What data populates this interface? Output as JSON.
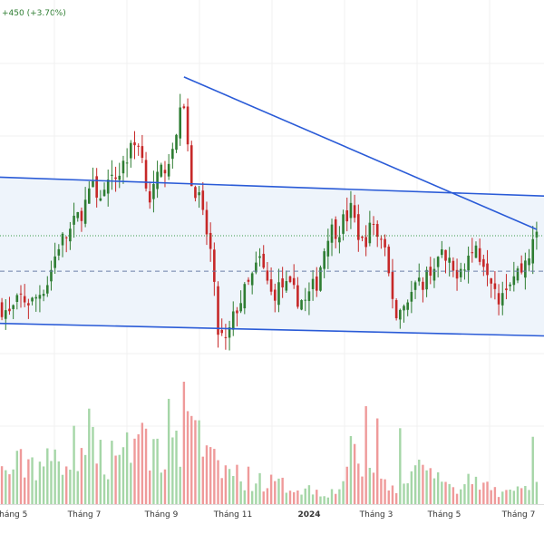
{
  "header": {
    "change_text": "+450 (+3.70%)"
  },
  "colors": {
    "up": "#2e7d32",
    "down": "#c62828",
    "volume_up": "#a5d6a7",
    "volume_down": "#ef9a9a",
    "trendline": "#2a5bd7",
    "channel_fill": "#eef4fb",
    "grid": "#f0f0f0"
  },
  "chart_data": {
    "type": "candlestick",
    "x_ticks": [
      {
        "label": "Tháng 5",
        "bold": false
      },
      {
        "label": "Tháng 7",
        "bold": false
      },
      {
        "label": "Tháng 9",
        "bold": false
      },
      {
        "label": "Tháng 11",
        "bold": false
      },
      {
        "label": "2024",
        "bold": true
      },
      {
        "label": "Tháng 3",
        "bold": false
      },
      {
        "label": "Tháng 5",
        "bold": false
      },
      {
        "label": "Tháng 7",
        "bold": false
      }
    ],
    "close_path": [
      [
        0,
        10.6
      ],
      [
        2,
        10.4
      ],
      [
        5,
        10.8
      ],
      [
        8,
        10.7
      ],
      [
        12,
        11.2
      ],
      [
        15,
        12.1
      ],
      [
        18,
        12.4
      ],
      [
        21,
        12.9
      ],
      [
        24,
        13.4
      ],
      [
        27,
        13.3
      ],
      [
        30,
        13.7
      ],
      [
        33,
        14.2
      ],
      [
        36,
        14.6
      ],
      [
        39,
        13.2
      ],
      [
        42,
        13.8
      ],
      [
        45,
        14.4
      ],
      [
        48,
        15.5
      ],
      [
        50,
        13.7
      ],
      [
        52,
        13.2
      ],
      [
        55,
        11.9
      ],
      [
        57,
        10.0
      ],
      [
        59,
        9.7
      ],
      [
        62,
        10.6
      ],
      [
        65,
        11.1
      ],
      [
        68,
        11.7
      ],
      [
        71,
        10.9
      ],
      [
        74,
        11.1
      ],
      [
        77,
        10.9
      ],
      [
        80,
        10.7
      ],
      [
        83,
        11.2
      ],
      [
        86,
        12.4
      ],
      [
        89,
        12.5
      ],
      [
        92,
        12.9
      ],
      [
        95,
        12.1
      ],
      [
        98,
        12.6
      ],
      [
        101,
        11.8
      ],
      [
        104,
        10.4
      ],
      [
        107,
        10.8
      ],
      [
        110,
        11.1
      ],
      [
        113,
        11.5
      ],
      [
        116,
        11.8
      ],
      [
        119,
        11.4
      ],
      [
        122,
        11.7
      ],
      [
        125,
        12.0
      ],
      [
        128,
        11.6
      ],
      [
        131,
        10.9
      ],
      [
        134,
        11.3
      ],
      [
        137,
        11.5
      ],
      [
        139,
        11.9
      ],
      [
        141,
        12.2
      ]
    ],
    "volume_path": [
      [
        0,
        0.28
      ],
      [
        4,
        0.34
      ],
      [
        8,
        0.4
      ],
      [
        12,
        0.36
      ],
      [
        16,
        0.46
      ],
      [
        20,
        0.52
      ],
      [
        24,
        0.5
      ],
      [
        28,
        0.42
      ],
      [
        32,
        0.56
      ],
      [
        36,
        0.62
      ],
      [
        40,
        0.5
      ],
      [
        44,
        0.44
      ],
      [
        48,
        0.58
      ],
      [
        52,
        0.52
      ],
      [
        56,
        0.34
      ],
      [
        60,
        0.3
      ],
      [
        64,
        0.24
      ],
      [
        68,
        0.22
      ],
      [
        72,
        0.18
      ],
      [
        76,
        0.16
      ],
      [
        80,
        0.14
      ],
      [
        84,
        0.12
      ],
      [
        88,
        0.1
      ],
      [
        92,
        0.42
      ],
      [
        96,
        0.34
      ],
      [
        100,
        0.22
      ],
      [
        104,
        0.18
      ],
      [
        108,
        0.3
      ],
      [
        112,
        0.24
      ],
      [
        116,
        0.18
      ],
      [
        120,
        0.16
      ],
      [
        124,
        0.2
      ],
      [
        128,
        0.14
      ],
      [
        132,
        0.1
      ],
      [
        136,
        0.12
      ],
      [
        141,
        0.26
      ]
    ],
    "volume_spikes": [
      {
        "i": 23,
        "v": 0.78
      },
      {
        "i": 44,
        "v": 0.86
      },
      {
        "i": 48,
        "v": 1.0
      },
      {
        "i": 50,
        "v": 0.72
      },
      {
        "i": 54,
        "v": 0.48
      },
      {
        "i": 96,
        "v": 0.8
      },
      {
        "i": 99,
        "v": 0.7
      },
      {
        "i": 105,
        "v": 0.62
      },
      {
        "i": 140,
        "v": 0.55
      }
    ],
    "channel": {
      "upper": [
        [
          0,
          13.7
        ],
        [
          141,
          13.25
        ]
      ],
      "lower": [
        [
          0,
          10.2
        ],
        [
          141,
          9.9
        ]
      ]
    },
    "descending_trendline": [
      [
        48,
        16.1
      ],
      [
        141,
        12.45
      ]
    ],
    "dashed_level": 11.45,
    "dotted_level": 12.3,
    "price_range": [
      8.5,
      17.4
    ],
    "grid": true,
    "legend": "none"
  }
}
